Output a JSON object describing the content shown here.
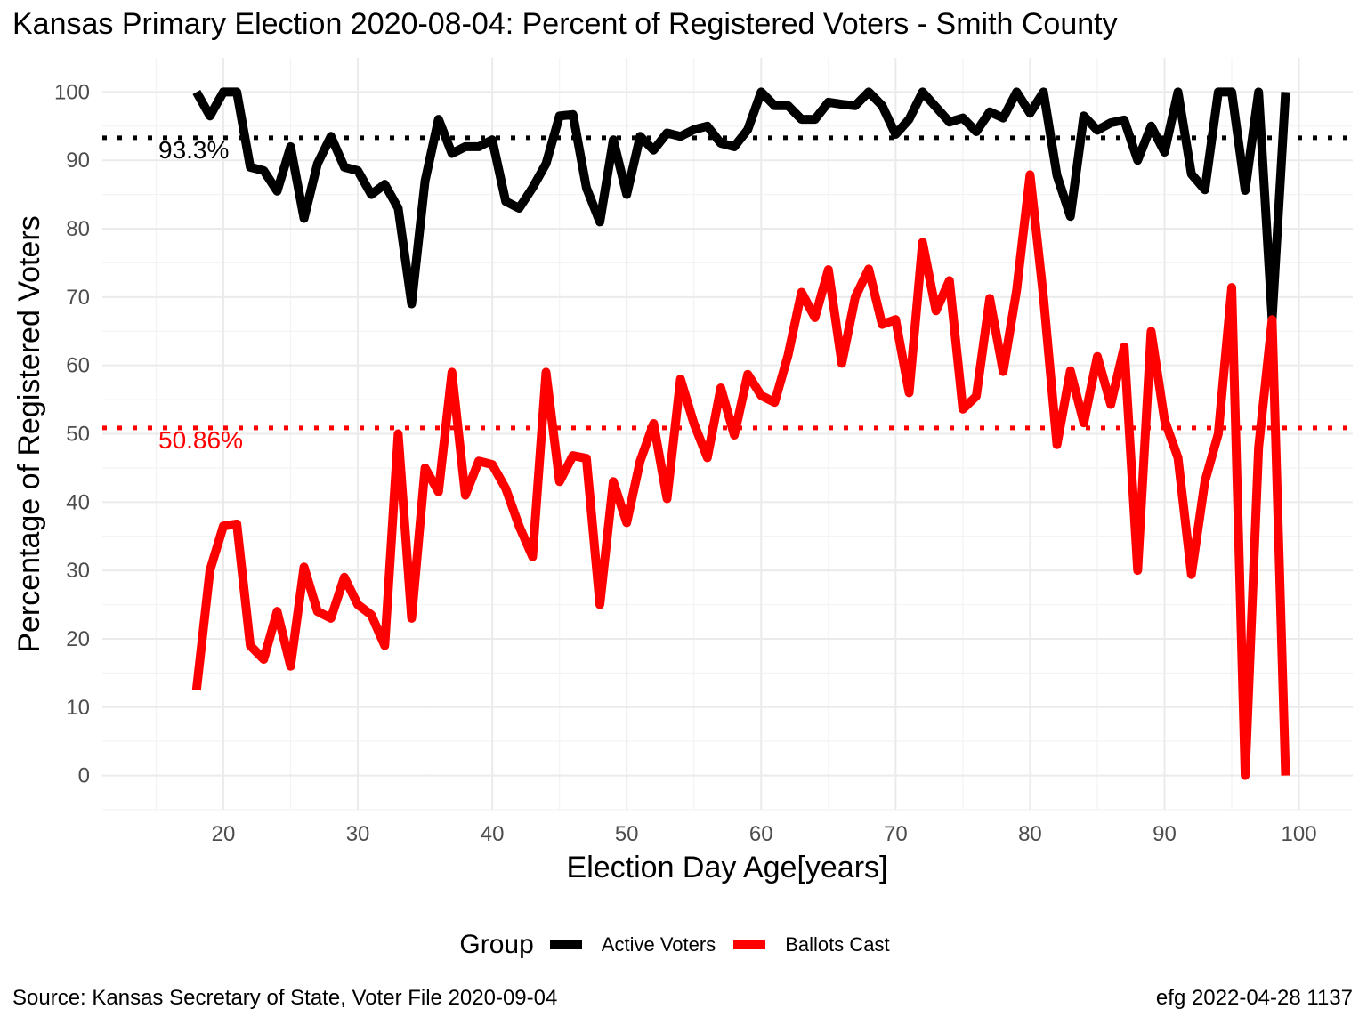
{
  "title": "Kansas Primary Election 2020-08-04:  Percent of Registered Voters - Smith County",
  "caption_left": "Source:  Kansas Secretary of State, Voter File  2020-09-04",
  "caption_right": "efg 2022-04-28 1137",
  "legend": {
    "title": "Group",
    "items": [
      {
        "label": "Active Voters",
        "color": "#000000"
      },
      {
        "label": "Ballots Cast",
        "color": "#ff0000"
      }
    ]
  },
  "chart_data": {
    "type": "line",
    "xlabel": "Election Day Age[years]",
    "ylabel": "Percentage of Registered Voters",
    "xlim": [
      11,
      104
    ],
    "ylim": [
      -5,
      105
    ],
    "xticks": [
      20,
      30,
      40,
      50,
      60,
      70,
      80,
      90,
      100
    ],
    "yticks": [
      0,
      10,
      20,
      30,
      40,
      50,
      60,
      70,
      80,
      90,
      100
    ],
    "grid": true,
    "legend_position": "bottom",
    "x": [
      18,
      19,
      20,
      21,
      22,
      23,
      24,
      25,
      26,
      27,
      28,
      29,
      30,
      31,
      32,
      33,
      34,
      35,
      36,
      37,
      38,
      39,
      40,
      41,
      42,
      43,
      44,
      45,
      46,
      47,
      48,
      49,
      50,
      51,
      52,
      53,
      54,
      55,
      56,
      57,
      58,
      59,
      60,
      61,
      62,
      63,
      64,
      65,
      66,
      67,
      68,
      69,
      70,
      71,
      72,
      73,
      74,
      75,
      76,
      77,
      78,
      79,
      80,
      81,
      82,
      83,
      84,
      85,
      86,
      87,
      88,
      89,
      90,
      91,
      92,
      93,
      94,
      95,
      96,
      97,
      98,
      99
    ],
    "series": [
      {
        "name": "Active Voters",
        "color": "#000000",
        "values": [
          100,
          96.5,
          100,
          100,
          89,
          88.5,
          85.5,
          92,
          81.5,
          89.5,
          93.5,
          89,
          88.5,
          85,
          86.5,
          83,
          69,
          87,
          96,
          91,
          92,
          92,
          93,
          84,
          83,
          86,
          89.5,
          96.5,
          96.7,
          86,
          81,
          93,
          85,
          93.5,
          91.5,
          94,
          93.5,
          94.5,
          95,
          92.5,
          92,
          94.5,
          100,
          98,
          98,
          96,
          96,
          98.5,
          98.2,
          98,
          100,
          98,
          93.8,
          96,
          100,
          97.8,
          95.6,
          96.2,
          94.2,
          97.1,
          96.2,
          100,
          96.9,
          100,
          87.8,
          81.8,
          96.5,
          94.4,
          95.5,
          95.9,
          90,
          95,
          91.2,
          100,
          88,
          85.7,
          100,
          100,
          85.6,
          100,
          66.7,
          100
        ]
      },
      {
        "name": "Ballots Cast",
        "color": "#ff0000",
        "values": [
          12.5,
          30,
          36.5,
          36.8,
          19,
          17,
          24,
          16,
          30.5,
          24,
          23,
          29,
          25,
          23.5,
          19,
          50,
          23,
          45,
          41.5,
          59,
          41,
          46,
          45.5,
          42,
          36.5,
          32,
          59,
          43,
          46.8,
          46.4,
          25,
          43,
          37,
          46,
          51.5,
          40.5,
          58,
          51.5,
          46.5,
          56.7,
          49.8,
          58.7,
          55.6,
          54.6,
          61.5,
          70.7,
          67,
          74,
          60.3,
          70,
          74.1,
          66,
          66.7,
          56,
          78,
          68,
          72.4,
          53.6,
          55.5,
          69.8,
          59.1,
          71,
          87.9,
          70,
          48.4,
          59.2,
          51.6,
          61.3,
          54.3,
          62.7,
          30,
          65,
          52,
          46.5,
          29.4,
          43,
          50,
          71.4,
          0,
          48,
          66.7,
          0
        ]
      }
    ],
    "reference_lines": [
      {
        "y": 93.3,
        "label": "93.3%",
        "color": "#000000"
      },
      {
        "y": 50.86,
        "label": "50.86%",
        "color": "#ff0000"
      }
    ]
  }
}
